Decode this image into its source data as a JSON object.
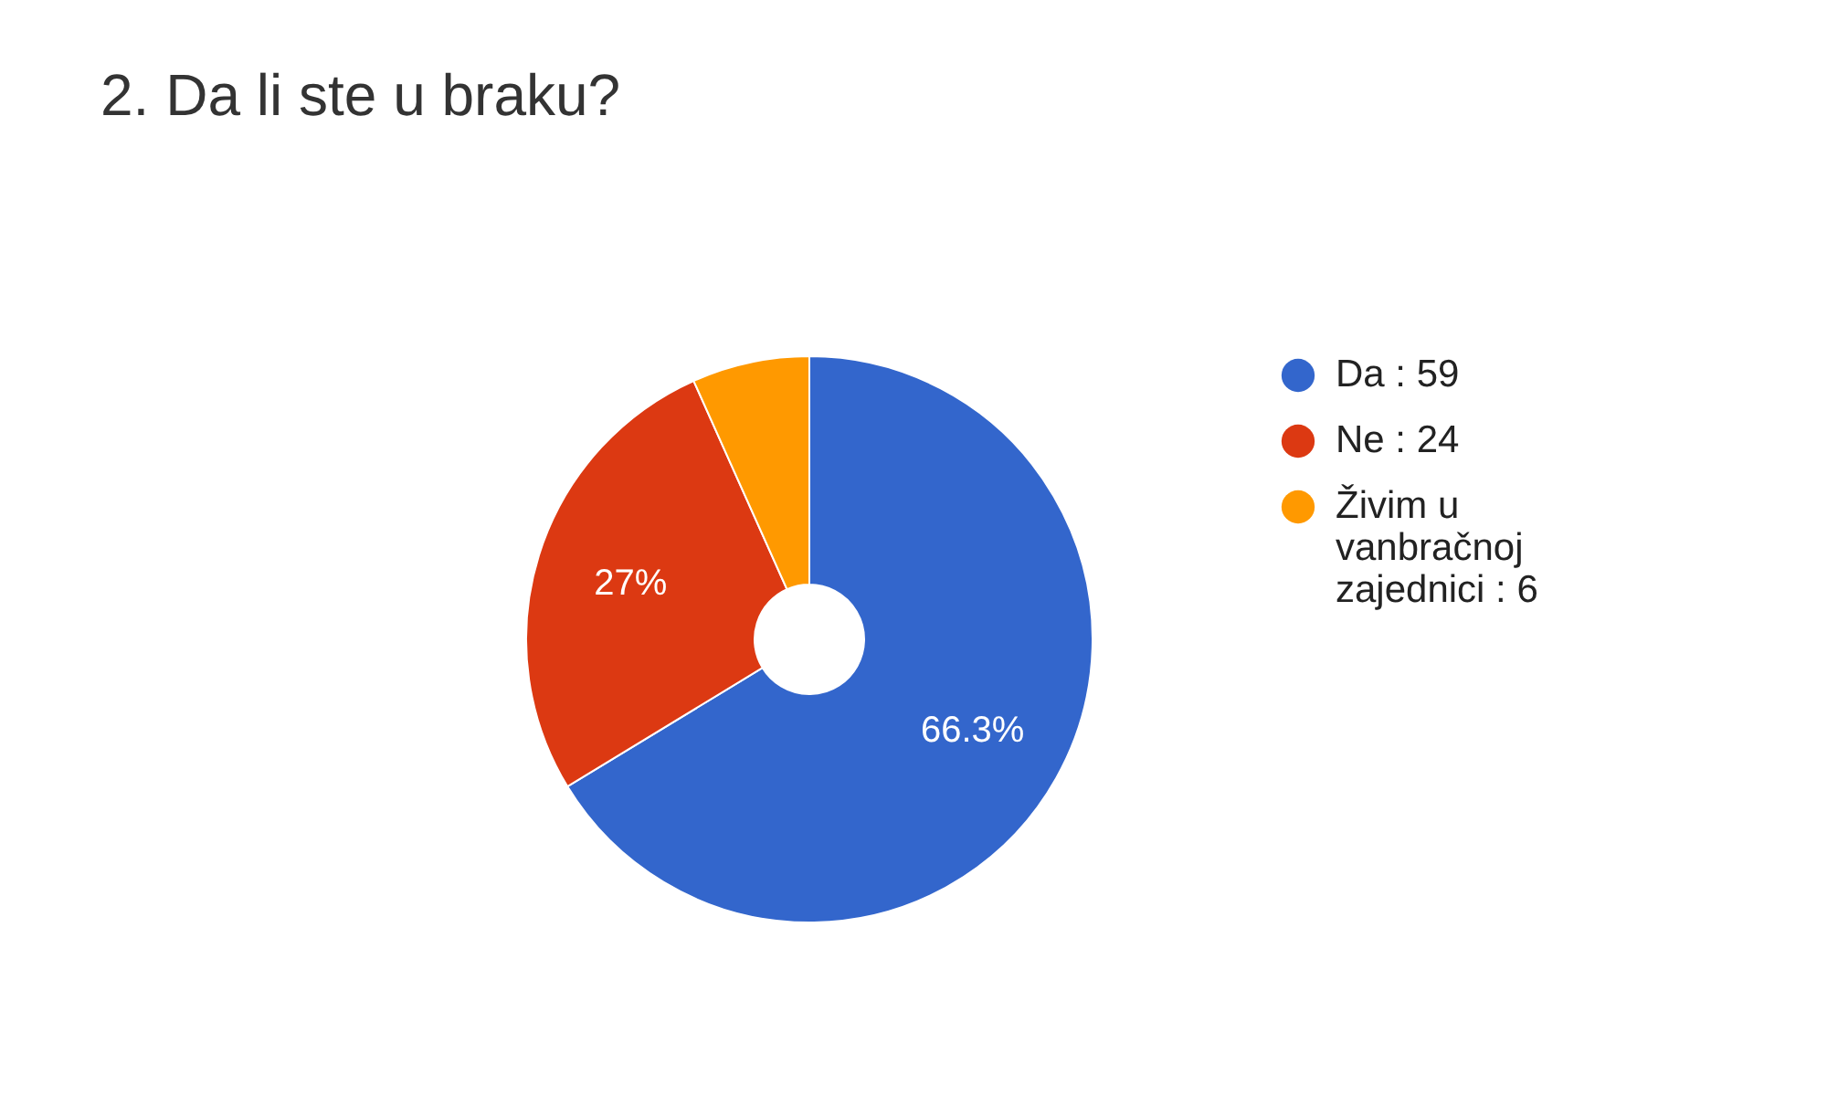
{
  "chart_data": {
    "type": "donut",
    "title": "2. Da li ste u braku?",
    "categories": [
      "Da : 59",
      "Ne : 24",
      "Živim u vanbračnoj zajednici : 6"
    ],
    "values": [
      66.3,
      27,
      6.7
    ],
    "colors": [
      "#3366cc",
      "#dc3912",
      "#ff9900"
    ],
    "value_labels": [
      "66.3%",
      "27%",
      null
    ],
    "legend": "right"
  }
}
